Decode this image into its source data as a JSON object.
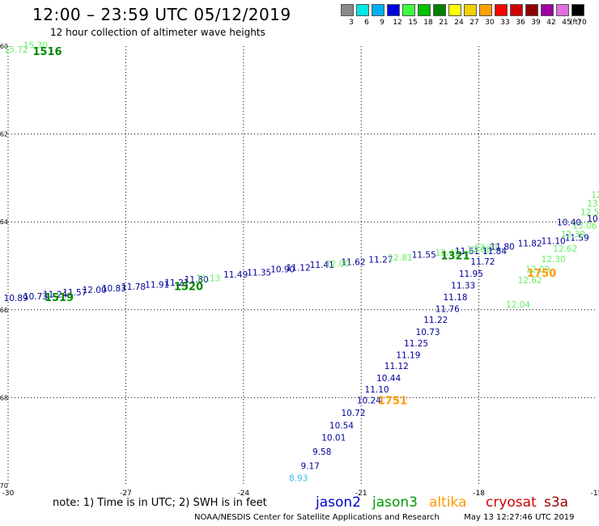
{
  "header": {
    "title": "12:00 – 23:59 UTC 05/12/2019",
    "subtitle": "12 hour collection of altimeter wave heights"
  },
  "legend": {
    "colors": [
      "#888888",
      "#00e8e8",
      "#00b0f0",
      "#0000e0",
      "#40ff40",
      "#00c000",
      "#008000",
      "#ffff00",
      "#f0d000",
      "#ffa000",
      "#ff0000",
      "#d00000",
      "#900000",
      "#a000a0",
      "#e070e0",
      "#000000"
    ],
    "labels": [
      "3",
      "6",
      "9",
      "12",
      "15",
      "18",
      "21",
      "24",
      "27",
      "30",
      "33",
      "36",
      "39",
      "42",
      "45",
      "70"
    ],
    "units": "(ft)"
  },
  "footer": {
    "note": "note: 1) Time is in UTC; 2) SWH is in feet",
    "satellites": [
      {
        "name": "jason2",
        "color": "#0000cc"
      },
      {
        "name": "jason3",
        "color": "#009900"
      },
      {
        "name": "altika",
        "color": "#ff9900"
      },
      {
        "name": "cryosat",
        "color": "#cc0000"
      },
      {
        "name": "s3a",
        "color": "#990000"
      }
    ],
    "credit": "NOAA/NESDIS Center for Satellite Applications and Research",
    "timestamp": "May 13 12:27:46 UTC 2019"
  },
  "chart_data": {
    "type": "scatter",
    "xlim": [
      -30,
      -15
    ],
    "ylim": [
      -70,
      -60
    ],
    "xticks": [
      -30,
      -27,
      -24,
      -21,
      -18,
      -15
    ],
    "yticks": [
      -60,
      -62,
      -64,
      -66,
      -68,
      -70
    ],
    "grid": true,
    "series": [
      {
        "name": "track-1",
        "color": "#000099",
        "points": [
          {
            "x": -29.8,
            "y": -65.8,
            "label": "10.89"
          },
          {
            "x": -29.3,
            "y": -65.76,
            "label": "10.73"
          },
          {
            "x": -28.8,
            "y": -65.72,
            "label": "11.24"
          },
          {
            "x": -28.3,
            "y": -65.67,
            "label": "11.57"
          },
          {
            "x": -27.8,
            "y": -65.62,
            "label": "12.00"
          },
          {
            "x": -27.3,
            "y": -65.58,
            "label": "10.83"
          },
          {
            "x": -26.8,
            "y": -65.54,
            "label": "11.78"
          },
          {
            "x": -26.2,
            "y": -65.5,
            "label": "11.91"
          },
          {
            "x": -25.7,
            "y": -65.45,
            "label": "11.21"
          },
          {
            "x": -25.2,
            "y": -65.38,
            "label": "11.80"
          },
          {
            "x": -24.2,
            "y": -65.27,
            "label": "11.49"
          },
          {
            "x": -23.6,
            "y": -65.22,
            "label": "11.35"
          },
          {
            "x": -23.0,
            "y": -65.15,
            "label": "10.90"
          },
          {
            "x": -22.6,
            "y": -65.11,
            "label": "11.12"
          },
          {
            "x": -22.0,
            "y": -65.05,
            "label": "11.41"
          },
          {
            "x": -21.2,
            "y": -64.98,
            "label": "11.62"
          },
          {
            "x": -20.5,
            "y": -64.93,
            "label": "11.27"
          },
          {
            "x": -19.4,
            "y": -64.82,
            "label": "11.55"
          },
          {
            "x": -18.3,
            "y": -64.73,
            "label": "11.61"
          },
          {
            "x": -17.4,
            "y": -64.63,
            "label": "11.80"
          },
          {
            "x": -16.7,
            "y": -64.56,
            "label": "11.82"
          },
          {
            "x": -16.1,
            "y": -64.5,
            "label": "11.10"
          },
          {
            "x": -15.5,
            "y": -64.43,
            "label": "11.59"
          }
        ]
      },
      {
        "name": "track-2",
        "color": "#66ee66",
        "points": [
          {
            "x": -29.8,
            "y": -60.15,
            "label": "15.72"
          },
          {
            "x": -29.3,
            "y": -60.05,
            "label": "15.30"
          },
          {
            "x": -24.9,
            "y": -65.35,
            "label": "12.13"
          },
          {
            "x": -21.6,
            "y": -65.02,
            "label": "12.00"
          },
          {
            "x": -20.0,
            "y": -64.88,
            "label": "12.81"
          },
          {
            "x": -18.8,
            "y": -64.77,
            "label": "12.41"
          },
          {
            "x": -18.0,
            "y": -64.7,
            "label": "12.08"
          },
          {
            "x": -17.8,
            "y": -64.65,
            "label": "12.11"
          },
          {
            "x": -17.0,
            "y": -65.95,
            "label": "12.04"
          },
          {
            "x": -16.7,
            "y": -65.4,
            "label": "12.62"
          },
          {
            "x": -16.5,
            "y": -65.15,
            "label": "12.09"
          },
          {
            "x": -16.1,
            "y": -64.92,
            "label": "12.30"
          },
          {
            "x": -15.8,
            "y": -64.68,
            "label": "12.62"
          },
          {
            "x": -15.6,
            "y": -64.35,
            "label": "12.39"
          },
          {
            "x": -15.3,
            "y": -64.15,
            "label": "13.06"
          },
          {
            "x": -15.1,
            "y": -63.85,
            "label": "12.57"
          },
          {
            "x": -15.0,
            "y": -63.65,
            "label": "13.0"
          },
          {
            "x": -15.0,
            "y": -63.45,
            "label": "12"
          }
        ]
      },
      {
        "name": "track-3",
        "color": "#000099",
        "points": [
          {
            "x": -22.3,
            "y": -69.62,
            "label": "9.17"
          },
          {
            "x": -22.0,
            "y": -69.3,
            "label": "9.58"
          },
          {
            "x": -21.7,
            "y": -68.98,
            "label": "10.01"
          },
          {
            "x": -21.5,
            "y": -68.7,
            "label": "10.54"
          },
          {
            "x": -21.2,
            "y": -68.42,
            "label": "10.72"
          },
          {
            "x": -20.8,
            "y": -68.13,
            "label": "10.24"
          },
          {
            "x": -20.6,
            "y": -67.88,
            "label": "11.10"
          },
          {
            "x": -20.3,
            "y": -67.62,
            "label": "10.44"
          },
          {
            "x": -20.1,
            "y": -67.35,
            "label": "11.12"
          },
          {
            "x": -19.8,
            "y": -67.1,
            "label": "11.19"
          },
          {
            "x": -19.6,
            "y": -66.83,
            "label": "11.25"
          },
          {
            "x": -19.3,
            "y": -66.57,
            "label": "10.73"
          },
          {
            "x": -19.1,
            "y": -66.3,
            "label": "11.22"
          },
          {
            "x": -18.8,
            "y": -66.05,
            "label": "11.76"
          },
          {
            "x": -18.6,
            "y": -65.78,
            "label": "11.18"
          },
          {
            "x": -18.4,
            "y": -65.52,
            "label": "11.33"
          },
          {
            "x": -18.2,
            "y": -65.25,
            "label": "11.95"
          },
          {
            "x": -17.9,
            "y": -64.97,
            "label": "11.72"
          },
          {
            "x": -17.6,
            "y": -64.73,
            "label": "11.84"
          },
          {
            "x": -15.7,
            "y": -64.08,
            "label": "10.40"
          },
          {
            "x": -15.0,
            "y": -64.0,
            "label": "10.8"
          }
        ]
      },
      {
        "name": "track-4",
        "color": "#33bbee",
        "points": [
          {
            "x": -22.6,
            "y": -69.9,
            "label": "8.93"
          }
        ]
      }
    ],
    "time_labels": [
      {
        "x": -29.0,
        "y": -60.2,
        "label": "1516",
        "color": "#008800"
      },
      {
        "x": -28.7,
        "y": -65.8,
        "label": "1519",
        "color": "#008800"
      },
      {
        "x": -25.4,
        "y": -65.55,
        "label": "1520",
        "color": "#008800"
      },
      {
        "x": -18.6,
        "y": -64.85,
        "label": "1321",
        "color": "#008800"
      },
      {
        "x": -16.4,
        "y": -65.25,
        "label": "1750",
        "color": "#ff9900"
      },
      {
        "x": -20.2,
        "y": -68.15,
        "label": "1751",
        "color": "#ff9900"
      }
    ]
  }
}
